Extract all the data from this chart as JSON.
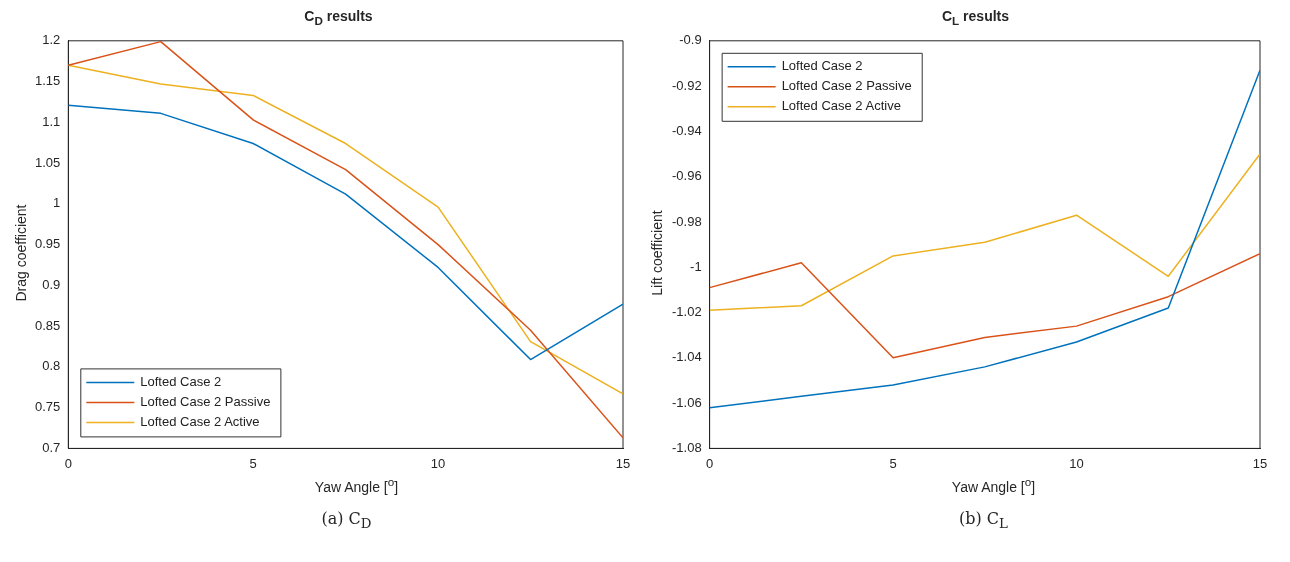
{
  "chart_data": [
    {
      "type": "line",
      "title": "C$_{D}$ results",
      "xlabel": "Yaw Angle [$^{o}$]",
      "ylabel": "Drag coefficient",
      "annotations": [
        "(a) C$_{D}$"
      ],
      "x": [
        0,
        2.5,
        5,
        7.5,
        10,
        12.5,
        15
      ],
      "series": [
        {
          "name": "Lofted Case 2",
          "color": "#0072bd",
          "values": [
            1.121,
            1.111,
            1.074,
            1.012,
            0.922,
            0.809,
            0.877
          ]
        },
        {
          "name": "Lofted Case 2 Passive",
          "color": "#d95319",
          "values": [
            1.17,
            1.199,
            1.103,
            1.042,
            0.95,
            0.845,
            0.713
          ]
        },
        {
          "name": "Lofted Case 2 Active",
          "color": "#edb120",
          "values": [
            1.17,
            1.147,
            1.133,
            1.074,
            0.996,
            0.831,
            0.767
          ]
        }
      ],
      "xlim": [
        0,
        15
      ],
      "xticks": [
        0,
        5,
        10,
        15
      ],
      "ylim": [
        0.7,
        1.2
      ],
      "yticks": [
        0.7,
        0.75,
        0.8,
        0.85,
        0.9,
        0.95,
        1,
        1.05,
        1.1,
        1.15,
        1.2
      ],
      "grid": false,
      "legend": "bottom left",
      "marker": "none",
      "line_style": "solid"
    },
    {
      "type": "line",
      "title": "C$_{L}$ results",
      "xlabel": "Yaw Angle [$^{o}$]",
      "ylabel": "Lift coefficient",
      "annotations": [
        "(b) C$_{L}$"
      ],
      "x": [
        0,
        2.5,
        5,
        7.5,
        10,
        12.5,
        15
      ],
      "series": [
        {
          "name": "Lofted Case 2",
          "color": "#0072bd",
          "values": [
            -1.062,
            -1.057,
            -1.052,
            -1.044,
            -1.033,
            -1.018,
            -0.913
          ]
        },
        {
          "name": "Lofted Case 2 Passive",
          "color": "#d95319",
          "values": [
            -1.009,
            -0.998,
            -1.04,
            -1.031,
            -1.026,
            -1.013,
            -0.994
          ]
        },
        {
          "name": "Lofted Case 2 Active",
          "color": "#edb120",
          "values": [
            -1.019,
            -1.017,
            -0.995,
            -0.989,
            -0.977,
            -1.004,
            -0.95
          ]
        }
      ],
      "xlim": [
        0,
        15
      ],
      "xticks": [
        0,
        5,
        10,
        15
      ],
      "ylim": [
        -1.08,
        -0.9
      ],
      "yticks": [
        -1.08,
        -1.06,
        -1.04,
        -1.02,
        -1,
        -0.98,
        -0.96,
        -0.94,
        -0.92,
        -0.9
      ],
      "grid": false,
      "legend": "top left",
      "marker": "none",
      "line_style": "solid"
    }
  ]
}
